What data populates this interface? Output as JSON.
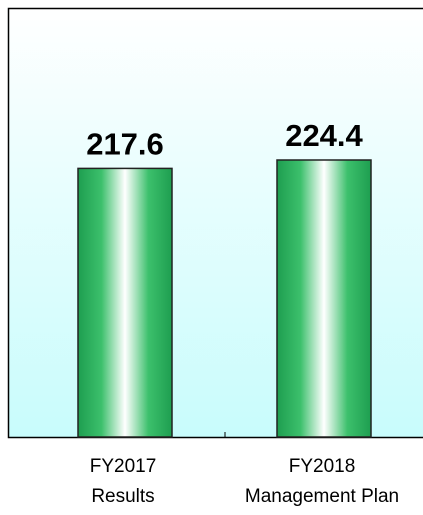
{
  "chart_data": {
    "type": "bar",
    "categories": [
      "FY2017\nResults",
      "FY2018\nManagement Plan"
    ],
    "values": [
      217.6,
      224.4
    ],
    "color": "#1e9e50"
  }
}
